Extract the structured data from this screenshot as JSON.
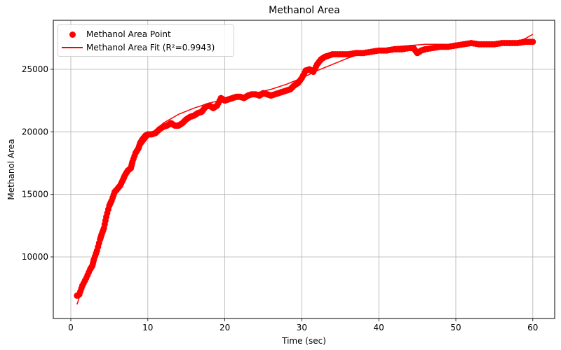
{
  "chart_data": {
    "type": "scatter",
    "title": "Methanol Area",
    "xlabel": "Time (sec)",
    "ylabel": "Methanol Area",
    "xlim": [
      -2.3,
      63
    ],
    "ylim": [
      5300,
      28800
    ],
    "xticks": [
      0,
      10,
      20,
      30,
      40,
      50,
      60
    ],
    "yticks": [
      10000,
      15000,
      20000,
      25000
    ],
    "grid": true,
    "legend_position": "upper left",
    "series": [
      {
        "name": "Methanol Area Point",
        "kind": "scatter",
        "color": "#ff0000",
        "x": [
          0.8,
          1.1,
          1.5,
          2.0,
          2.5,
          2.8,
          3.0,
          3.4,
          3.8,
          4.0,
          4.3,
          4.6,
          5.0,
          5.3,
          5.7,
          6.0,
          6.4,
          6.8,
          7.0,
          7.4,
          7.8,
          8.0,
          8.4,
          8.8,
          9.0,
          9.3,
          9.7,
          10.0,
          10.5,
          11.0,
          11.5,
          12.0,
          12.5,
          13.0,
          13.5,
          14.0,
          14.5,
          15.0,
          15.5,
          16.0,
          16.5,
          17.0,
          17.5,
          18.0,
          18.5,
          19.0,
          19.5,
          20.0,
          20.5,
          21.0,
          21.5,
          22.0,
          22.5,
          23.0,
          23.5,
          24.0,
          24.5,
          25.0,
          25.5,
          26.0,
          26.5,
          27.0,
          27.5,
          28.0,
          28.5,
          29.0,
          29.5,
          30.0,
          30.5,
          31.0,
          31.5,
          32.0,
          32.5,
          33.0,
          33.5,
          34.0,
          35.0,
          36.0,
          37.0,
          38.0,
          39.0,
          40.0,
          41.0,
          42.0,
          43.0,
          44.0,
          44.5,
          45.0,
          45.5,
          46.0,
          47.0,
          48.0,
          49.0,
          50.0,
          51.0,
          52.0,
          53.0,
          54.0,
          55.0,
          56.0,
          57.0,
          58.0,
          59.0,
          60.0
        ],
        "y": [
          6900,
          7000,
          7700,
          8300,
          9000,
          9300,
          9800,
          10500,
          11400,
          11800,
          12300,
          13200,
          14100,
          14500,
          15200,
          15400,
          15700,
          16200,
          16500,
          16900,
          17100,
          17600,
          18300,
          18700,
          19100,
          19400,
          19700,
          19800,
          19800,
          19900,
          20200,
          20400,
          20500,
          20700,
          20500,
          20500,
          20700,
          21000,
          21200,
          21300,
          21500,
          21600,
          22000,
          22100,
          21900,
          22100,
          22700,
          22500,
          22600,
          22700,
          22800,
          22800,
          22700,
          22900,
          23000,
          23000,
          22900,
          23100,
          23000,
          22900,
          23000,
          23100,
          23200,
          23300,
          23400,
          23700,
          23900,
          24300,
          24900,
          25000,
          24800,
          25400,
          25800,
          26000,
          26100,
          26200,
          26200,
          26200,
          26300,
          26300,
          26400,
          26500,
          26500,
          26600,
          26600,
          26700,
          26700,
          26300,
          26500,
          26600,
          26700,
          26800,
          26800,
          26900,
          27000,
          27100,
          27000,
          27000,
          27000,
          27100,
          27100,
          27100,
          27200,
          27200
        ]
      },
      {
        "name": "Methanol Area Fit (R²=0.9943)",
        "kind": "line",
        "color": "#ff0000",
        "r_squared": 0.9943,
        "x": [
          0.8,
          2,
          3,
          4,
          5,
          6,
          7,
          8,
          9,
          10,
          12,
          14,
          16,
          18,
          20,
          22,
          24,
          26,
          28,
          30,
          32,
          34,
          36,
          38,
          40,
          42,
          44,
          46,
          48,
          50,
          52,
          54,
          56,
          58,
          59,
          60
        ],
        "y": [
          6200,
          8400,
          10300,
          12100,
          13700,
          15200,
          16600,
          17700,
          18700,
          19500,
          20700,
          21400,
          21900,
          22300,
          22600,
          22800,
          23100,
          23400,
          23800,
          24300,
          24900,
          25400,
          25900,
          26300,
          26600,
          26800,
          26900,
          27000,
          27000,
          26900,
          26900,
          26900,
          27000,
          27200,
          27450,
          27800
        ]
      }
    ]
  },
  "legend": {
    "items": [
      {
        "label": "Methanol Area Point"
      },
      {
        "label": "Methanol Area Fit (R²=0.9943)"
      }
    ]
  }
}
